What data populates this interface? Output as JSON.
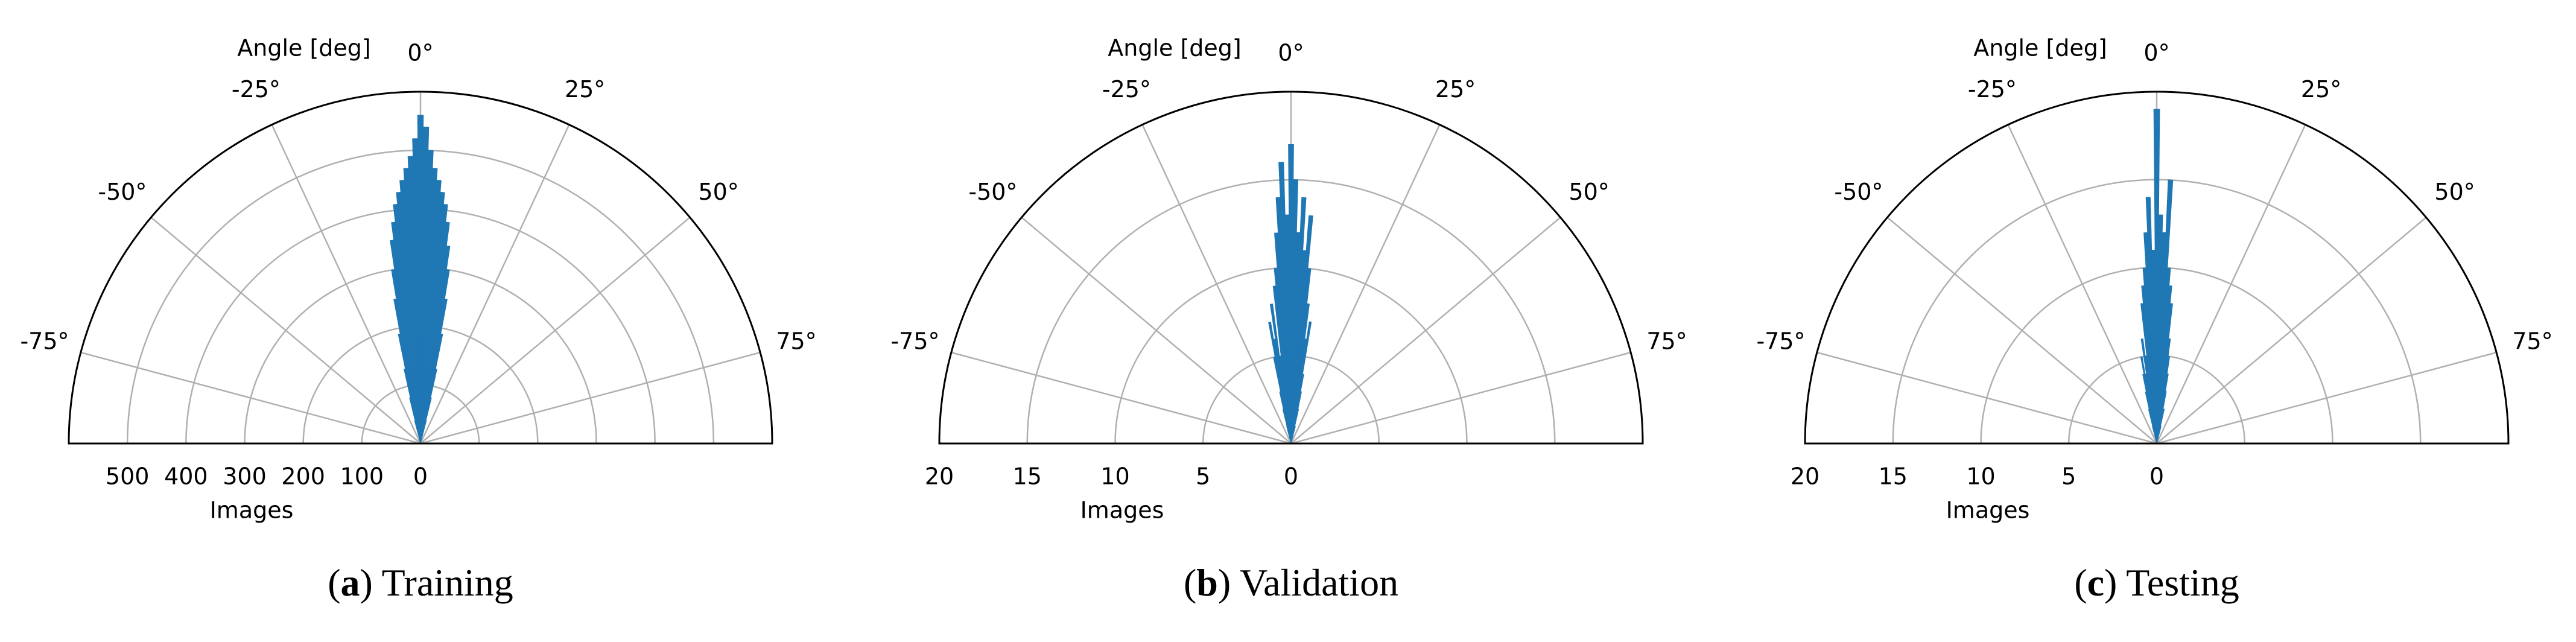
{
  "chart_data": [
    {
      "type": "polar",
      "theta_label": "Angle [deg]",
      "r_label": "Images",
      "caption": {
        "open": "(",
        "letter": "a",
        "rest": ") Training"
      },
      "color": "#1f77b4",
      "grid": true,
      "thetalim": [
        -90,
        90
      ],
      "thetaticks": [
        {
          "value": -75,
          "label": "-75°"
        },
        {
          "value": -50,
          "label": "-50°"
        },
        {
          "value": -25,
          "label": "-25°"
        },
        {
          "value": 0,
          "label": "0°"
        },
        {
          "value": 25,
          "label": "25°"
        },
        {
          "value": 50,
          "label": "50°"
        },
        {
          "value": 75,
          "label": "75°"
        }
      ],
      "rlim": [
        0,
        600
      ],
      "rticks": [
        0,
        100,
        200,
        300,
        400,
        500
      ],
      "x": [
        -14,
        -13,
        -12,
        -11,
        -10,
        -9,
        -8,
        -7,
        -6,
        -5,
        -4,
        -3,
        -2,
        -1,
        0,
        1,
        2,
        3,
        4,
        5,
        6,
        7,
        8,
        9,
        10,
        11,
        12,
        13,
        14
      ],
      "values": [
        40,
        80,
        130,
        190,
        250,
        300,
        350,
        380,
        410,
        430,
        450,
        470,
        490,
        520,
        560,
        540,
        500,
        470,
        450,
        430,
        410,
        380,
        340,
        300,
        250,
        190,
        130,
        80,
        40
      ]
    },
    {
      "type": "polar",
      "theta_label": "Angle [deg]",
      "r_label": "Images",
      "caption": {
        "open": "(",
        "letter": "b",
        "rest": ") Validation"
      },
      "color": "#1f77b4",
      "grid": true,
      "thetalim": [
        -90,
        90
      ],
      "thetaticks": [
        {
          "value": -75,
          "label": "-75°"
        },
        {
          "value": -50,
          "label": "-50°"
        },
        {
          "value": -25,
          "label": "-25°"
        },
        {
          "value": 0,
          "label": "0°"
        },
        {
          "value": 25,
          "label": "25°"
        },
        {
          "value": 50,
          "label": "50°"
        },
        {
          "value": 75,
          "label": "75°"
        }
      ],
      "rlim": [
        0,
        20
      ],
      "rticks": [
        0,
        5,
        10,
        15,
        20
      ],
      "x": [
        -14,
        -13,
        -12,
        -11,
        -10,
        -9,
        -8,
        -7,
        -6,
        -5,
        -4,
        -3,
        -2,
        -1,
        0,
        1,
        2,
        3,
        4,
        5,
        6,
        7,
        8,
        9,
        10,
        11,
        12,
        13,
        14
      ],
      "values": [
        1,
        2,
        3,
        5,
        7,
        6,
        8,
        5,
        9,
        10,
        12,
        14,
        16,
        13,
        17,
        15,
        12,
        14,
        11,
        13,
        10,
        8,
        6,
        7,
        4,
        3,
        2,
        1,
        1
      ]
    },
    {
      "type": "polar",
      "theta_label": "Angle [deg]",
      "r_label": "Images",
      "caption": {
        "open": "(",
        "letter": "c",
        "rest": ") Testing"
      },
      "color": "#1f77b4",
      "grid": true,
      "thetalim": [
        -90,
        90
      ],
      "thetaticks": [
        {
          "value": -75,
          "label": "-75°"
        },
        {
          "value": -50,
          "label": "-50°"
        },
        {
          "value": -25,
          "label": "-25°"
        },
        {
          "value": 0,
          "label": "0°"
        },
        {
          "value": 25,
          "label": "25°"
        },
        {
          "value": 50,
          "label": "50°"
        },
        {
          "value": 75,
          "label": "75°"
        }
      ],
      "rlim": [
        0,
        20
      ],
      "rticks": [
        0,
        5,
        10,
        15,
        20
      ],
      "x": [
        -14,
        -13,
        -12,
        -11,
        -10,
        -9,
        -8,
        -7,
        -6,
        -5,
        -4,
        -3,
        -2,
        -1,
        0,
        1,
        2,
        3,
        4,
        5,
        6,
        7,
        8,
        9,
        10,
        11,
        12,
        13,
        14
      ],
      "values": [
        1,
        2,
        3,
        4,
        5,
        4,
        6,
        5,
        8,
        9,
        10,
        12,
        14,
        11,
        19,
        13,
        12,
        15,
        10,
        9,
        8,
        6,
        5,
        4,
        3,
        2,
        2,
        1,
        1
      ]
    }
  ]
}
